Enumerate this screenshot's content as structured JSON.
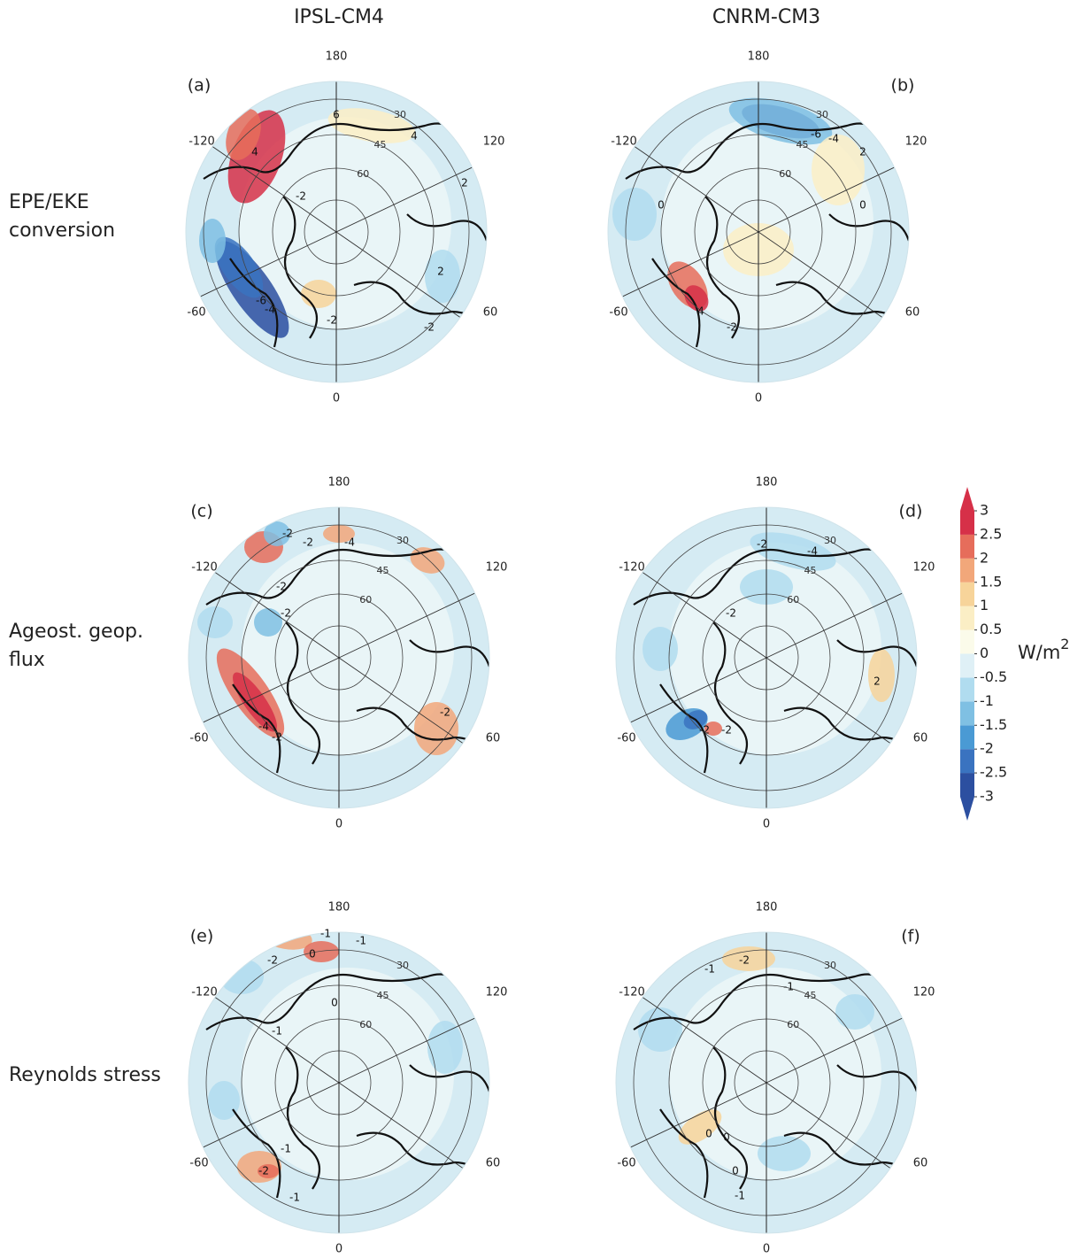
{
  "columns": [
    "IPSL-CM4",
    "CNRM-CM3"
  ],
  "rows": [
    [
      "EPE/EKE",
      "conversion"
    ],
    [
      "Ageost. geop.",
      "flux"
    ],
    [
      "Reynolds stress"
    ]
  ],
  "panels": [
    {
      "label": "(a)",
      "lon_labels": [
        "180",
        "-120",
        "120",
        "-60",
        "60",
        "0"
      ],
      "lat_labels": [
        "30",
        "45",
        "60"
      ],
      "contour_labels": [
        "6",
        "4",
        "4",
        "-2",
        "2",
        "2",
        "-6",
        "-4",
        "-2",
        "-2"
      ]
    },
    {
      "label": "(b)",
      "lon_labels": [
        "180",
        "-120",
        "120",
        "-60",
        "60",
        "0"
      ],
      "lat_labels": [
        "30",
        "45",
        "60"
      ],
      "contour_labels": [
        "-6",
        "-4",
        "2",
        "0",
        "0",
        "4",
        "-2"
      ]
    },
    {
      "label": "(c)",
      "lon_labels": [
        "180",
        "-120",
        "120",
        "-60",
        "60",
        "0"
      ],
      "lat_labels": [
        "30",
        "45",
        "60"
      ],
      "contour_labels": [
        "-2",
        "-2",
        "-4",
        "-2",
        "-2",
        "-4",
        "-2",
        "-2"
      ]
    },
    {
      "label": "(d)",
      "lon_labels": [
        "180",
        "-120",
        "120",
        "-60",
        "60",
        "0"
      ],
      "lat_labels": [
        "30",
        "45",
        "60"
      ],
      "contour_labels": [
        "-2",
        "-4",
        "-2",
        "-2",
        "-2",
        "2"
      ]
    },
    {
      "label": "(e)",
      "lon_labels": [
        "180",
        "-120",
        "120",
        "-60",
        "60",
        "0"
      ],
      "lat_labels": [
        "30",
        "45",
        "60"
      ],
      "contour_labels": [
        "-1",
        "-1",
        "-2",
        "0",
        "0",
        "-1",
        "-1",
        "-2",
        "-1"
      ]
    },
    {
      "label": "(f)",
      "lon_labels": [
        "180",
        "-120",
        "120",
        "-60",
        "60",
        "0"
      ],
      "lat_labels": [
        "30",
        "45",
        "60"
      ],
      "contour_labels": [
        "-1",
        "-2",
        "-1",
        "0",
        "0",
        "0",
        "-1"
      ]
    }
  ],
  "colorbar": {
    "ticks": [
      3,
      2.5,
      2,
      1.5,
      1,
      0.5,
      0,
      -0.5,
      -1,
      -1.5,
      -2,
      -2.5,
      -3
    ],
    "unit": "W/m",
    "unit_sup": "2",
    "colors": [
      "#2c4fa0",
      "#3a73c0",
      "#4a9ad4",
      "#7fc0e3",
      "#b0dcef",
      "#dff0f6",
      "#fbfbea",
      "#fbeec5",
      "#f7d49a",
      "#f2a77a",
      "#e66d5b",
      "#d63048"
    ]
  }
}
